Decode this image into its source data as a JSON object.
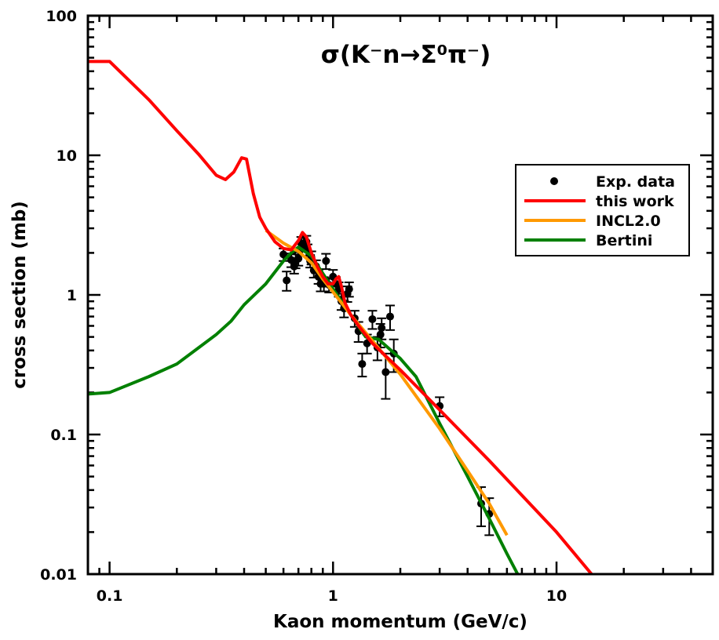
{
  "chart_data": {
    "type": "line",
    "title": "σ(K⁻n→Σ⁰π⁻)",
    "xlabel": "Kaon momentum (GeV/c)",
    "ylabel": "cross section (mb)",
    "xscale": "log",
    "yscale": "log",
    "xlim": [
      0.08,
      50
    ],
    "ylim": [
      0.01,
      100
    ],
    "x_ticks": [
      {
        "value": 0.1,
        "label": "0.1"
      },
      {
        "value": 1,
        "label": "1"
      },
      {
        "value": 10,
        "label": "10"
      }
    ],
    "y_ticks": [
      {
        "value": 0.01,
        "label": "0.01"
      },
      {
        "value": 0.1,
        "label": "0.1"
      },
      {
        "value": 1,
        "label": "1"
      },
      {
        "value": 10,
        "label": "10"
      },
      {
        "value": 100,
        "label": "100"
      }
    ],
    "legend_position": "right",
    "colors": {
      "exp": "#000000",
      "this_work": "#ff0000",
      "incl": "#ff9900",
      "bertini": "#008000"
    },
    "series": [
      {
        "name": "this work",
        "kind": "line",
        "color": "#ff0000",
        "x": [
          0.08,
          0.1,
          0.15,
          0.2,
          0.25,
          0.3,
          0.33,
          0.36,
          0.39,
          0.41,
          0.44,
          0.47,
          0.5,
          0.55,
          0.6,
          0.65,
          0.7,
          0.73,
          0.76,
          0.8,
          0.85,
          0.9,
          0.95,
          1.0,
          1.03,
          1.06,
          1.09,
          1.13,
          1.2,
          1.3,
          1.5,
          2.0,
          3.0,
          5.0,
          10.0,
          14.5
        ],
        "y": [
          47,
          47,
          25,
          15,
          10.2,
          7.2,
          6.7,
          7.6,
          9.6,
          9.4,
          5.3,
          3.6,
          3.0,
          2.4,
          2.15,
          2.1,
          2.45,
          2.8,
          2.6,
          2.0,
          1.6,
          1.35,
          1.2,
          1.2,
          1.3,
          1.35,
          1.15,
          0.88,
          0.72,
          0.6,
          0.45,
          0.29,
          0.15,
          0.065,
          0.02,
          0.0098
        ]
      },
      {
        "name": "INCL2.0",
        "kind": "line",
        "color": "#ff9900",
        "x": [
          0.5,
          0.6,
          0.7,
          0.8,
          0.9,
          1.0,
          1.2,
          1.5,
          2.0,
          3.0,
          4.0,
          5.0,
          6.0
        ],
        "y": [
          2.9,
          2.35,
          2.05,
          1.7,
          1.3,
          1.05,
          0.72,
          0.47,
          0.27,
          0.11,
          0.055,
          0.032,
          0.019
        ]
      },
      {
        "name": "Bertini",
        "kind": "line",
        "color": "#008000",
        "x": [
          0.08,
          0.1,
          0.15,
          0.2,
          0.3,
          0.35,
          0.4,
          0.5,
          0.6,
          0.65,
          0.7,
          0.8,
          1.0,
          1.2,
          1.4,
          1.6,
          2.0,
          2.35,
          3.0,
          4.0,
          5.0,
          6.0,
          6.7
        ],
        "y": [
          0.195,
          0.2,
          0.26,
          0.32,
          0.52,
          0.65,
          0.85,
          1.2,
          1.75,
          2.0,
          2.2,
          1.9,
          1.1,
          0.72,
          0.5,
          0.48,
          0.35,
          0.26,
          0.12,
          0.05,
          0.025,
          0.014,
          0.01
        ]
      },
      {
        "name": "Exp. data",
        "kind": "scatter",
        "color": "#000000",
        "x": [
          0.6,
          0.62,
          0.65,
          0.67,
          0.68,
          0.7,
          0.72,
          0.74,
          0.76,
          0.77,
          0.79,
          0.8,
          0.82,
          0.84,
          0.86,
          0.88,
          0.91,
          0.93,
          0.96,
          1.0,
          1.03,
          1.06,
          1.09,
          1.12,
          1.16,
          1.18,
          1.25,
          1.3,
          1.35,
          1.42,
          1.5,
          1.58,
          1.63,
          1.65,
          1.72,
          1.8,
          1.87,
          3.0,
          4.6,
          5.0
        ],
        "y": [
          1.95,
          1.27,
          1.78,
          1.6,
          1.75,
          1.82,
          2.35,
          2.3,
          2.4,
          2.1,
          1.75,
          1.85,
          1.5,
          1.6,
          1.35,
          1.2,
          1.2,
          1.75,
          1.18,
          1.35,
          1.2,
          1.1,
          0.9,
          0.8,
          1.02,
          1.1,
          0.68,
          0.55,
          0.32,
          0.45,
          0.67,
          0.42,
          0.52,
          0.58,
          0.28,
          0.7,
          0.38,
          0.16,
          0.032,
          0.027
        ],
        "err": [
          0.2,
          0.2,
          0.2,
          0.18,
          0.2,
          0.2,
          0.25,
          0.25,
          0.25,
          0.2,
          0.18,
          0.2,
          0.17,
          0.17,
          0.15,
          0.14,
          0.14,
          0.22,
          0.14,
          0.16,
          0.14,
          0.13,
          0.12,
          0.11,
          0.13,
          0.13,
          0.09,
          0.09,
          0.06,
          0.07,
          0.1,
          0.08,
          0.1,
          0.1,
          0.1,
          0.14,
          0.1,
          0.025,
          0.01,
          0.008
        ]
      }
    ]
  }
}
